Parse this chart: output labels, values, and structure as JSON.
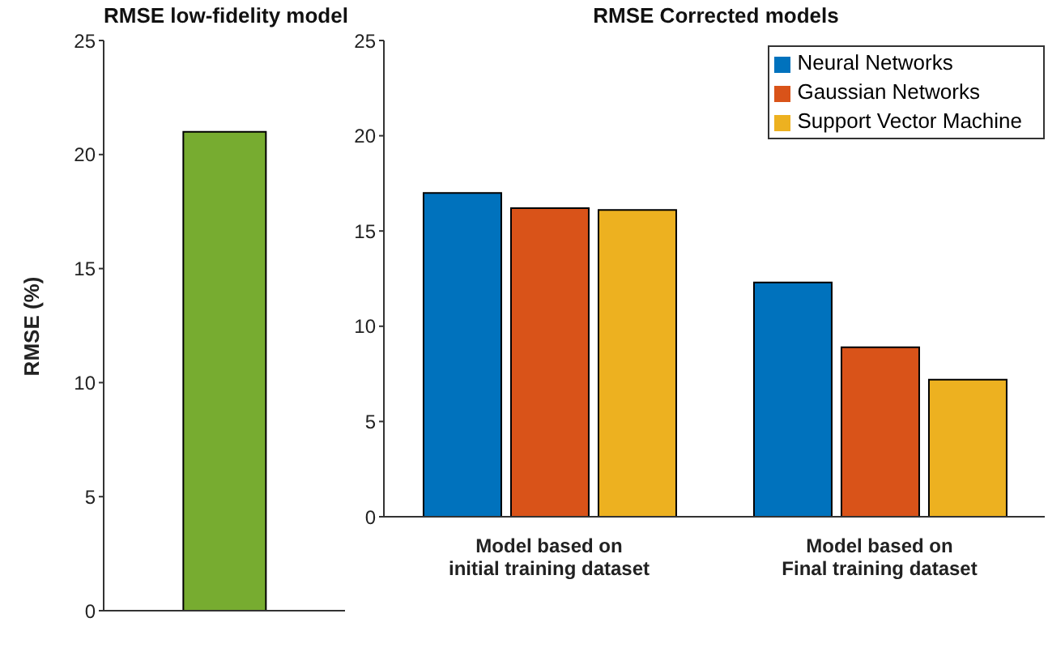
{
  "chart_data": [
    {
      "type": "bar",
      "title": "RMSE low-fidelity model",
      "ylabel": "RMSE (%)",
      "categories": [
        null
      ],
      "series": [
        {
          "color": "#77ac30",
          "values": [
            21
          ]
        }
      ],
      "ylim": [
        0,
        25
      ],
      "yticks": [
        0,
        5,
        10,
        15,
        20,
        25
      ],
      "grid": false,
      "legend": false
    },
    {
      "type": "bar",
      "title": "RMSE Corrected models",
      "categories": [
        "Model based on\ninitial training dataset",
        "Model based on\nFinal training dataset"
      ],
      "series": [
        {
          "name": "Neural Networks",
          "color": "#0072bd",
          "values": [
            17,
            12.3
          ]
        },
        {
          "name": "Gaussian Networks",
          "color": "#d95319",
          "values": [
            16.2,
            8.9
          ]
        },
        {
          "name": "Support Vector Machine",
          "color": "#edb120",
          "values": [
            16.1,
            7.2
          ]
        }
      ],
      "ylim": [
        0,
        25
      ],
      "yticks": [
        0,
        5,
        10,
        15,
        20,
        25
      ],
      "grid": false,
      "legend": "top right"
    }
  ]
}
